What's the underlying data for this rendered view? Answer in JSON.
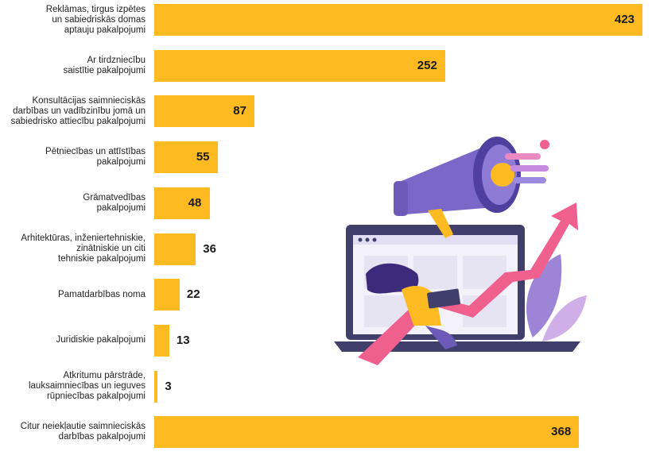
{
  "colors": {
    "bar": "#FDBB21",
    "purple": "#7B67C8",
    "pink": "#F0608E",
    "laptop": "#403E6B"
  },
  "illustration": {
    "icon": "megaphone-laptop-growth-illustration"
  },
  "chart_data": {
    "type": "bar",
    "orientation": "horizontal",
    "title": "",
    "xlabel": "",
    "ylabel": "",
    "xlim": [
      0,
      423
    ],
    "grid": false,
    "categories": [
      [
        "Reklāmas, tirgus izpētes",
        "un sabiedriskās domas",
        "aptauju pakalpojumi"
      ],
      [
        "Ar tirdzniecību",
        "saistītie pakalpojumi"
      ],
      [
        "Konsultācijas saimnieciskās",
        "darbības un vadībzinību jomā un",
        "sabiedrisko attiecību pakalpojumi"
      ],
      [
        "Pētniecības un attīstības",
        "pakalpojumi"
      ],
      [
        "Grāmatvedības",
        "pakalpojumi"
      ],
      [
        "Arhitektūras, inženiertehniskie,",
        "zinātniskie un citi",
        "tehniskie pakalpojumi"
      ],
      [
        "Pamatdarbības noma"
      ],
      [
        "Juridiskie pakalpojumi"
      ],
      [
        "Atkritumu pārstrāde,",
        "lauksaimniecības un ieguves",
        "rūpniecības pakalpojumi"
      ],
      [
        "Citur neiekļautie saimnieciskās",
        "darbības pakalpojumi"
      ]
    ],
    "values": [
      423,
      252,
      87,
      55,
      48,
      36,
      22,
      13,
      3,
      368
    ],
    "value_labels": [
      "423",
      "252",
      "87",
      "55",
      "48",
      "36",
      "22",
      "13",
      "3",
      "368"
    ]
  }
}
